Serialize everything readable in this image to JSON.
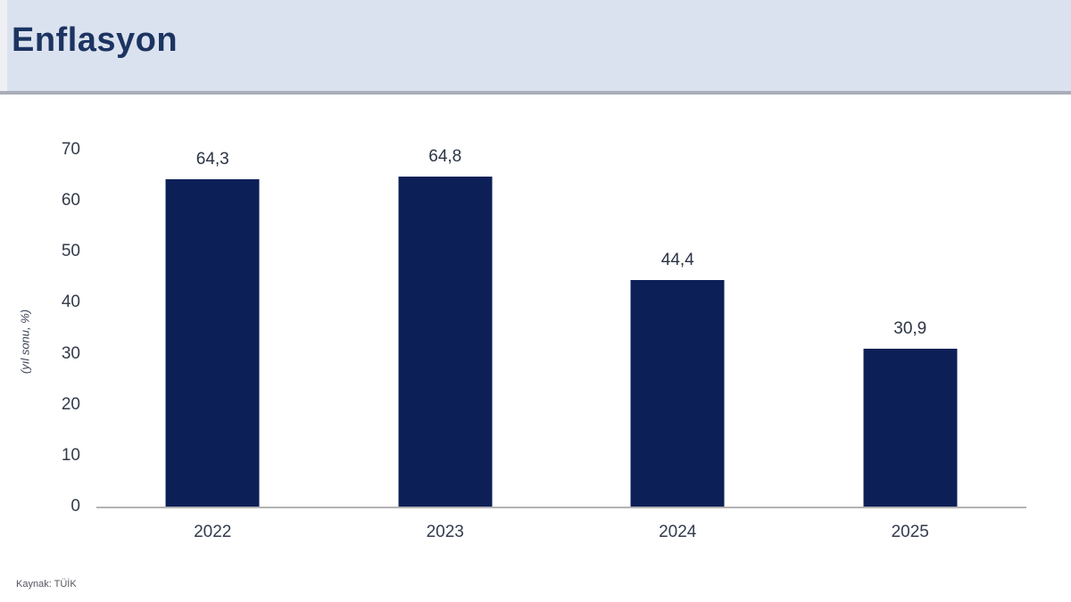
{
  "header": {
    "title": "Enflasyon"
  },
  "chart_data": {
    "type": "bar",
    "title": "Enflasyon",
    "categories": [
      "2022",
      "2023",
      "2024",
      "2025"
    ],
    "values": [
      64.3,
      64.8,
      44.4,
      30.9
    ],
    "value_labels": [
      "64,3",
      "64,8",
      "44,4",
      "30,9"
    ],
    "xlabel": "",
    "ylabel": "(yıl sonu, %)",
    "ylim": [
      0,
      70
    ],
    "yticks": [
      0,
      10,
      20,
      30,
      40,
      50,
      60,
      70
    ],
    "grid": false,
    "legend_position": "none",
    "bar_color": "#0c2057"
  },
  "source": "Kaynak: TÜİK",
  "colors": {
    "header_bg": "#dbe2ef",
    "header_border": "#a9aeba",
    "title_text": "#1c3461",
    "bar": "#0c2057",
    "axis_line": "#b3b3b3",
    "tick_text": "#333a49",
    "value_label_text": "#2b3444"
  }
}
